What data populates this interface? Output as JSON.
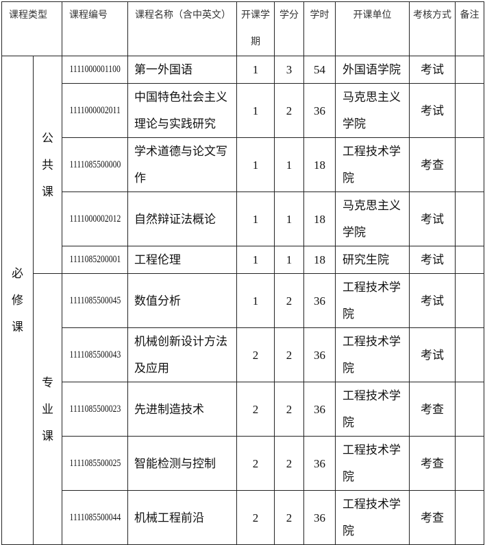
{
  "header": {
    "type": "课程类型",
    "code": "课程编号",
    "name": "课程名称（含中英文）",
    "semester": "开课学期",
    "credit": "学分",
    "hours": "学时",
    "unit": "开课单位",
    "exam": "考核方式",
    "note": "备注"
  },
  "categories": {
    "main": "必修课",
    "public": "公共课",
    "major": "专业课"
  },
  "rows": [
    {
      "code": "1111000001100",
      "name": "第一外国语",
      "semester": "1",
      "credit": "3",
      "hours": "54",
      "unit": "外国语学院",
      "exam": "考试",
      "note": ""
    },
    {
      "code": "1111000002011",
      "name": "中国特色社会主义理论与实践研究",
      "semester": "1",
      "credit": "2",
      "hours": "36",
      "unit": "马克思主义学院",
      "exam": "考试",
      "note": ""
    },
    {
      "code": "1111085500000",
      "name": "学术道德与论文写作",
      "semester": "1",
      "credit": "1",
      "hours": "18",
      "unit": "工程技术学院",
      "exam": "考查",
      "note": ""
    },
    {
      "code": "1111000002012",
      "name": "自然辩证法概论",
      "semester": "1",
      "credit": "1",
      "hours": "18",
      "unit": "马克思主义学院",
      "exam": "考试",
      "note": ""
    },
    {
      "code": "1111085200001",
      "name": "工程伦理",
      "semester": "1",
      "credit": "1",
      "hours": "18",
      "unit": "研究生院",
      "exam": "考试",
      "note": ""
    },
    {
      "code": "1111085500045",
      "name": "数值分析",
      "semester": "1",
      "credit": "2",
      "hours": "36",
      "unit": "工程技术学院",
      "exam": "考试",
      "note": ""
    },
    {
      "code": "1111085500043",
      "name": "机械创新设计方法及应用",
      "semester": "2",
      "credit": "2",
      "hours": "36",
      "unit": "工程技术学院",
      "exam": "考试",
      "note": ""
    },
    {
      "code": "1111085500023",
      "name": "先进制造技术",
      "semester": "2",
      "credit": "2",
      "hours": "36",
      "unit": "工程技术学院",
      "exam": "考查",
      "note": ""
    },
    {
      "code": "1111085500025",
      "name": "智能检测与控制",
      "semester": "2",
      "credit": "2",
      "hours": "36",
      "unit": "工程技术学院",
      "exam": "考查",
      "note": ""
    },
    {
      "code": "1111085500044",
      "name": "机械工程前沿",
      "semester": "2",
      "credit": "2",
      "hours": "36",
      "unit": "工程技术学院",
      "exam": "考查",
      "note": ""
    }
  ]
}
